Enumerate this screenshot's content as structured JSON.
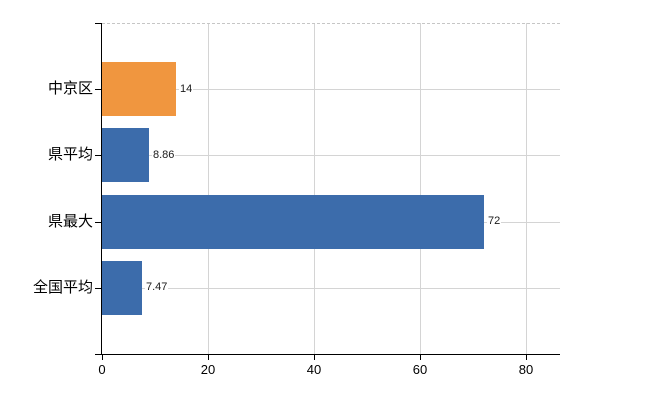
{
  "chart_data": {
    "type": "bar",
    "orientation": "horizontal",
    "title": "",
    "categories": [
      "中京区",
      "県平均",
      "県最大",
      "全国平均"
    ],
    "values": [
      14,
      8.86,
      72,
      7.47
    ],
    "value_labels": [
      "14",
      "8.86",
      "72",
      "7.47"
    ],
    "bar_colors": [
      "#f0963f",
      "#3c6cab",
      "#3c6cab",
      "#3c6cab"
    ],
    "x_tick_labels": [
      "0",
      "20",
      "40",
      "60",
      "80"
    ],
    "x_tick_values": [
      0,
      20,
      40,
      60,
      80
    ],
    "xlim": [
      0,
      86.5
    ],
    "xlabel": "",
    "ylabel": "",
    "grid": true,
    "legend": false,
    "colors": {
      "accent_orange": "#f0963f",
      "accent_blue": "#3c6cab",
      "grid": "#d4d4d4",
      "axis": "#000000",
      "text": "#000000",
      "background": "#ffffff"
    }
  }
}
